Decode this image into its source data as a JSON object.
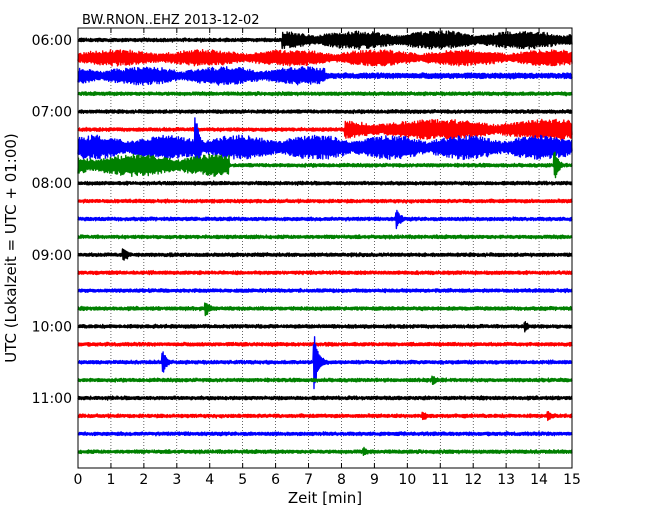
{
  "chart_data": {
    "type": "line",
    "title": "BW.RNON..EHZ 2013-12-02",
    "xlabel": "Zeit  [min]",
    "ylabel": "UTC (Lokalzeit = UTC + 01:00)",
    "xlim": [
      0,
      15
    ],
    "x_ticks": [
      "0",
      "1",
      "2",
      "3",
      "4",
      "5",
      "6",
      "7",
      "8",
      "9",
      "10",
      "11",
      "12",
      "13",
      "14",
      "15"
    ],
    "y_ticks": [
      {
        "label": "06:00",
        "row": 0
      },
      {
        "label": "07:00",
        "row": 4
      },
      {
        "label": "08:00",
        "row": 8
      },
      {
        "label": "09:00",
        "row": 12
      },
      {
        "label": "10:00",
        "row": 16
      },
      {
        "label": "11:00",
        "row": 20
      }
    ],
    "vertical_grid": "dotted, every 1 min",
    "color_cycle": [
      "#000000",
      "#ff0000",
      "#0000ff",
      "#008000"
    ],
    "traces": [
      {
        "start": "06:00",
        "noise": 1.5,
        "events": [
          {
            "from": 6.2,
            "to": 15,
            "amp": 9
          }
        ]
      },
      {
        "start": "06:15",
        "noise": 3.0,
        "events": [
          {
            "from": 0,
            "to": 15,
            "amp": 8
          }
        ]
      },
      {
        "start": "06:30",
        "noise": 2.5,
        "events": [
          {
            "from": 0,
            "to": 7.5,
            "amp": 9
          }
        ]
      },
      {
        "start": "06:45",
        "noise": 1.5,
        "events": []
      },
      {
        "start": "07:00",
        "noise": 1.5,
        "events": []
      },
      {
        "start": "07:15",
        "noise": 1.5,
        "events": [
          {
            "from": 8.1,
            "to": 15,
            "amp": 10
          }
        ]
      },
      {
        "start": "07:30",
        "noise": 1.5,
        "events": [
          {
            "from": 0,
            "to": 15,
            "amp": 12
          },
          {
            "at": 3.6,
            "amp": 30
          }
        ]
      },
      {
        "start": "07:45",
        "noise": 1.5,
        "events": [
          {
            "from": 0,
            "to": 4.6,
            "amp": 11
          },
          {
            "at": 14.5,
            "amp": 14
          }
        ]
      },
      {
        "start": "08:00",
        "noise": 1.5,
        "events": []
      },
      {
        "start": "08:15",
        "noise": 1.5,
        "events": []
      },
      {
        "start": "08:30",
        "noise": 1.5,
        "events": [
          {
            "at": 9.7,
            "amp": 10
          }
        ]
      },
      {
        "start": "08:45",
        "noise": 1.5,
        "events": []
      },
      {
        "start": "09:00",
        "noise": 1.5,
        "events": [
          {
            "at": 1.4,
            "amp": 8
          }
        ]
      },
      {
        "start": "09:15",
        "noise": 1.5,
        "events": []
      },
      {
        "start": "09:30",
        "noise": 1.5,
        "events": []
      },
      {
        "start": "09:45",
        "noise": 1.5,
        "events": [
          {
            "at": 3.9,
            "amp": 8
          }
        ]
      },
      {
        "start": "10:00",
        "noise": 1.5,
        "events": [
          {
            "at": 13.6,
            "amp": 5
          }
        ]
      },
      {
        "start": "10:15",
        "noise": 1.5,
        "events": []
      },
      {
        "start": "10:30",
        "noise": 1.5,
        "events": [
          {
            "at": 2.6,
            "amp": 10
          },
          {
            "at": 7.2,
            "amp": 28
          }
        ]
      },
      {
        "start": "10:45",
        "noise": 1.5,
        "events": [
          {
            "at": 10.8,
            "amp": 5
          }
        ]
      },
      {
        "start": "11:00",
        "noise": 1.5,
        "events": []
      },
      {
        "start": "11:15",
        "noise": 1.5,
        "events": [
          {
            "at": 10.5,
            "amp": 5
          },
          {
            "at": 14.3,
            "amp": 5
          }
        ]
      },
      {
        "start": "11:30",
        "noise": 1.5,
        "events": []
      },
      {
        "start": "11:45",
        "noise": 1.5,
        "events": [
          {
            "at": 8.7,
            "amp": 4
          }
        ]
      }
    ]
  }
}
